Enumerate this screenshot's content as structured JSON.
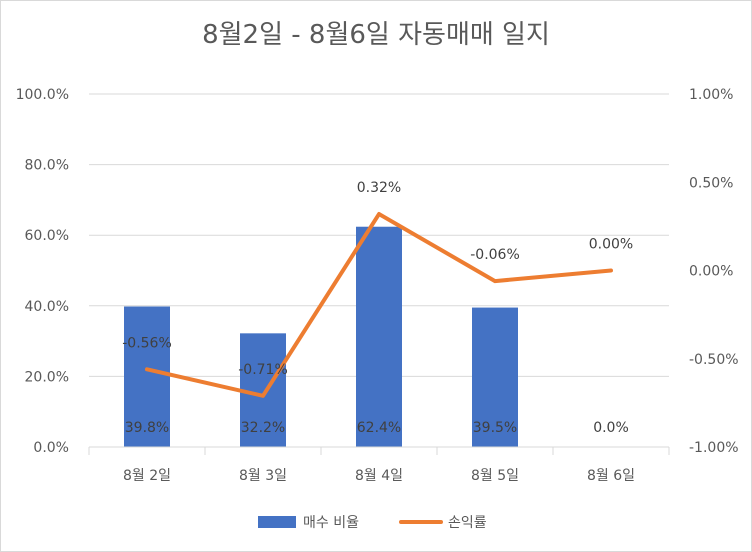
{
  "chart_data": {
    "type": "bar+line",
    "title": "8월2일 - 8월6일 자동매매 일지",
    "categories": [
      "8월 2일",
      "8월 3일",
      "8월 4일",
      "8월 5일",
      "8월 6일"
    ],
    "series": [
      {
        "name": "매수 비율",
        "type": "bar",
        "axis": "left",
        "color": "#4472C4",
        "values": [
          39.8,
          32.2,
          62.4,
          39.5,
          0.0
        ],
        "labels": [
          "39.8%",
          "32.2%",
          "62.4%",
          "39.5%",
          "0.0%"
        ]
      },
      {
        "name": "손익률",
        "type": "line",
        "axis": "right",
        "color": "#ED7D31",
        "values": [
          -0.56,
          -0.71,
          0.32,
          -0.06,
          0.0
        ],
        "labels": [
          "-0.56%",
          "-0.71%",
          "0.32%",
          "-0.06%",
          "0.00%"
        ]
      }
    ],
    "y_left": {
      "ylim": [
        0,
        100
      ],
      "ticks": [
        0,
        20,
        40,
        60,
        80,
        100
      ],
      "tick_labels": [
        "0.0%",
        "20.0%",
        "40.0%",
        "60.0%",
        "80.0%",
        "100.0%"
      ]
    },
    "y_right": {
      "ylim": [
        -1.0,
        1.0
      ],
      "ticks": [
        -1.0,
        -0.5,
        0.0,
        0.5,
        1.0
      ],
      "tick_labels": [
        "-1.00%",
        "-0.50%",
        "0.00%",
        "0.50%",
        "1.00%"
      ]
    },
    "grid": true,
    "legend_position": "bottom"
  }
}
